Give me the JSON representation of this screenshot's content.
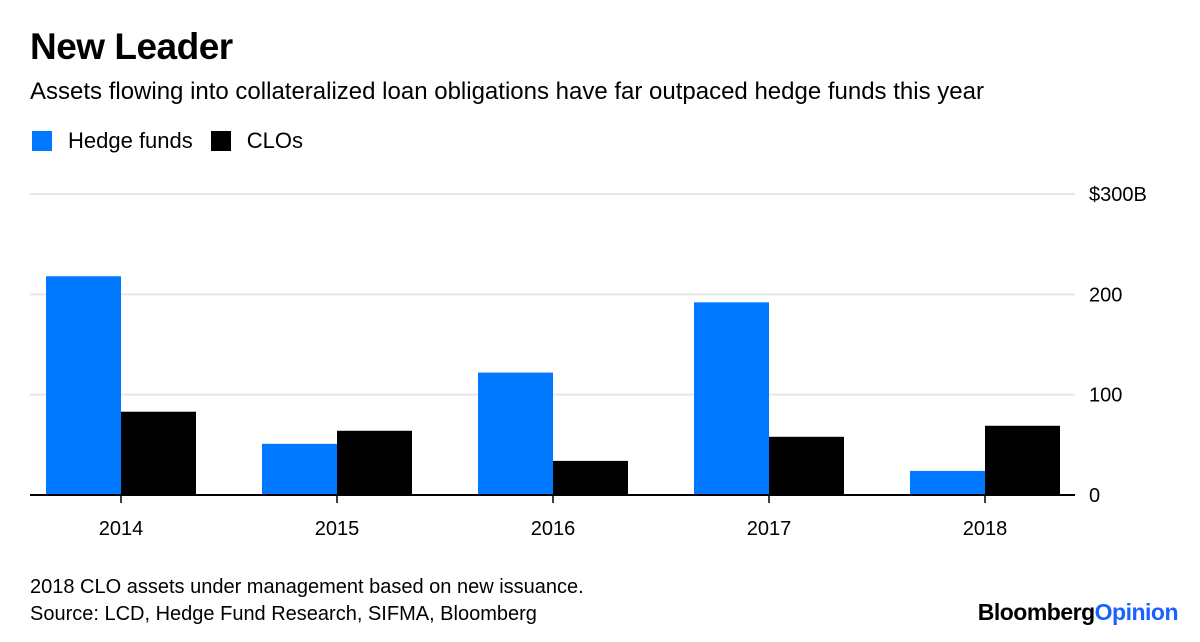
{
  "title": "New Leader",
  "subtitle": "Assets flowing into collateralized loan obligations have far outpaced hedge funds this year",
  "footnote": {
    "note": "2018 CLO assets under management based on new issuance.",
    "source": "Source: LCD, Hedge Fund Research, SIFMA, Bloomberg"
  },
  "brand": {
    "name": "Bloomberg",
    "suffix": "Opinion"
  },
  "colors": {
    "hedge": "#0078ff",
    "clo": "#000000",
    "grid": "#e6e6e6",
    "brand_accent": "#1a62ff"
  },
  "chart_data": {
    "type": "bar",
    "title": "New Leader",
    "categories": [
      "2014",
      "2015",
      "2016",
      "2017",
      "2018"
    ],
    "series": [
      {
        "name": "Hedge funds",
        "color": "#0078ff",
        "values": [
          218,
          51,
          122,
          192,
          24
        ]
      },
      {
        "name": "CLOs",
        "color": "#000000",
        "values": [
          83,
          64,
          34,
          58,
          69
        ]
      }
    ],
    "ylim": [
      0,
      300
    ],
    "yticks": [
      0,
      100,
      200,
      300
    ],
    "ytick_labels": [
      "0",
      "100",
      "200",
      "$300B"
    ],
    "y_axis_side": "right",
    "grid": true,
    "legend": "top-left",
    "xlabel": "",
    "ylabel": ""
  }
}
